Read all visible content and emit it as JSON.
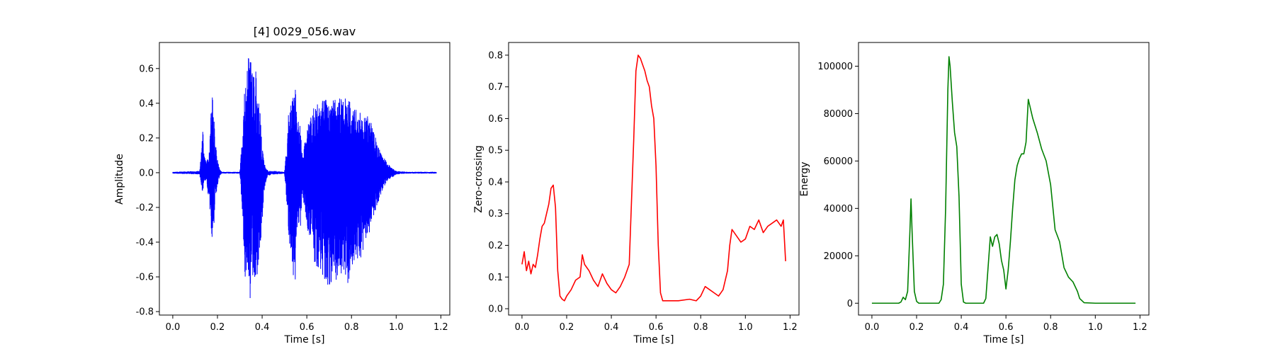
{
  "chart_data": [
    {
      "type": "line",
      "title": "[4] 0029_056.wav",
      "xlabel": "Time [s]",
      "ylabel": "Amplitude",
      "xlim": [
        -0.06,
        1.24
      ],
      "ylim": [
        -0.82,
        0.75
      ],
      "xticks": [
        "0.0",
        "0.2",
        "0.4",
        "0.6",
        "0.8",
        "1.0",
        "1.2"
      ],
      "yticks": [
        "-0.8",
        "-0.6",
        "-0.4",
        "-0.2",
        "0.0",
        "0.2",
        "0.4",
        "0.6"
      ],
      "color": "#0000ff",
      "grid": false,
      "series": [
        {
          "envelope": {
            "t": [
              0.0,
              0.12,
              0.13,
              0.135,
              0.14,
              0.15,
              0.165,
              0.17,
              0.18,
              0.185,
              0.19,
              0.2,
              0.21,
              0.22,
              0.3,
              0.315,
              0.32,
              0.33,
              0.34,
              0.355,
              0.37,
              0.38,
              0.39,
              0.4,
              0.41,
              0.42,
              0.43,
              0.44,
              0.46,
              0.5,
              0.515,
              0.52,
              0.53,
              0.54,
              0.55,
              0.56,
              0.57,
              0.58,
              0.6,
              0.61,
              0.63,
              0.65,
              0.68,
              0.7,
              0.72,
              0.74,
              0.76,
              0.78,
              0.8,
              0.82,
              0.84,
              0.86,
              0.88,
              0.9,
              0.92,
              0.94,
              0.96,
              0.98,
              1.0,
              1.05,
              1.18
            ],
            "upper": [
              0.005,
              0.01,
              0.18,
              0.31,
              0.1,
              0.06,
              0.15,
              0.38,
              0.46,
              0.3,
              0.18,
              0.08,
              0.02,
              0.005,
              0.005,
              0.3,
              0.45,
              0.55,
              0.7,
              0.62,
              0.64,
              0.42,
              0.4,
              0.15,
              0.06,
              0.02,
              0.01,
              0.01,
              0.01,
              0.005,
              0.25,
              0.4,
              0.43,
              0.47,
              0.5,
              0.3,
              0.28,
              0.1,
              0.24,
              0.3,
              0.37,
              0.4,
              0.43,
              0.44,
              0.42,
              0.45,
              0.42,
              0.44,
              0.41,
              0.38,
              0.35,
              0.34,
              0.32,
              0.24,
              0.15,
              0.1,
              0.06,
              0.03,
              0.01,
              0.005,
              0.005
            ],
            "lower": [
              -0.005,
              -0.01,
              -0.1,
              -0.16,
              -0.06,
              -0.04,
              -0.2,
              -0.38,
              -0.4,
              -0.3,
              -0.15,
              -0.08,
              -0.02,
              -0.005,
              -0.005,
              -0.3,
              -0.55,
              -0.7,
              -0.77,
              -0.7,
              -0.66,
              -0.6,
              -0.5,
              -0.3,
              -0.1,
              -0.03,
              -0.02,
              -0.01,
              -0.01,
              -0.005,
              -0.25,
              -0.4,
              -0.45,
              -0.6,
              -0.64,
              -0.25,
              -0.4,
              -0.12,
              -0.3,
              -0.4,
              -0.5,
              -0.57,
              -0.62,
              -0.66,
              -0.63,
              -0.62,
              -0.6,
              -0.65,
              -0.58,
              -0.5,
              -0.5,
              -0.43,
              -0.35,
              -0.25,
              -0.17,
              -0.1,
              -0.05,
              -0.03,
              -0.01,
              -0.005,
              -0.005
            ]
          }
        }
      ]
    },
    {
      "type": "line",
      "title": "",
      "xlabel": "Time [s]",
      "ylabel": "Zero-crossing",
      "xlim": [
        -0.06,
        1.24
      ],
      "ylim": [
        -0.02,
        0.84
      ],
      "xticks": [
        "0.0",
        "0.2",
        "0.4",
        "0.6",
        "0.8",
        "1.0",
        "1.2"
      ],
      "yticks": [
        "0.0",
        "0.1",
        "0.2",
        "0.3",
        "0.4",
        "0.5",
        "0.6",
        "0.7",
        "0.8"
      ],
      "color": "#ff0000",
      "grid": false,
      "series": [
        {
          "x": [
            0.0,
            0.01,
            0.02,
            0.03,
            0.04,
            0.05,
            0.06,
            0.07,
            0.08,
            0.09,
            0.1,
            0.11,
            0.12,
            0.13,
            0.14,
            0.15,
            0.16,
            0.17,
            0.18,
            0.19,
            0.2,
            0.21,
            0.22,
            0.24,
            0.26,
            0.27,
            0.28,
            0.3,
            0.32,
            0.34,
            0.36,
            0.38,
            0.4,
            0.42,
            0.44,
            0.46,
            0.48,
            0.5,
            0.51,
            0.52,
            0.53,
            0.54,
            0.55,
            0.56,
            0.57,
            0.58,
            0.59,
            0.6,
            0.61,
            0.62,
            0.63,
            0.66,
            0.7,
            0.75,
            0.78,
            0.8,
            0.82,
            0.84,
            0.86,
            0.88,
            0.9,
            0.92,
            0.93,
            0.94,
            0.95,
            0.96,
            0.98,
            1.0,
            1.02,
            1.04,
            1.06,
            1.08,
            1.1,
            1.12,
            1.14,
            1.16,
            1.17,
            1.18
          ],
          "y": [
            0.14,
            0.18,
            0.12,
            0.15,
            0.11,
            0.14,
            0.13,
            0.17,
            0.22,
            0.26,
            0.27,
            0.3,
            0.33,
            0.38,
            0.39,
            0.32,
            0.12,
            0.04,
            0.03,
            0.025,
            0.04,
            0.05,
            0.06,
            0.09,
            0.1,
            0.17,
            0.14,
            0.12,
            0.09,
            0.07,
            0.11,
            0.08,
            0.06,
            0.05,
            0.07,
            0.1,
            0.14,
            0.53,
            0.75,
            0.8,
            0.79,
            0.77,
            0.75,
            0.72,
            0.7,
            0.64,
            0.6,
            0.45,
            0.2,
            0.05,
            0.025,
            0.025,
            0.025,
            0.03,
            0.025,
            0.04,
            0.07,
            0.06,
            0.05,
            0.04,
            0.06,
            0.12,
            0.2,
            0.25,
            0.24,
            0.23,
            0.21,
            0.22,
            0.26,
            0.25,
            0.28,
            0.24,
            0.26,
            0.27,
            0.28,
            0.26,
            0.28,
            0.15
          ]
        }
      ]
    },
    {
      "type": "line",
      "title": "",
      "xlabel": "Time [s]",
      "ylabel": "Energy",
      "xlim": [
        -0.06,
        1.24
      ],
      "ylim": [
        -5000,
        110000
      ],
      "xticks": [
        "0.0",
        "0.2",
        "0.4",
        "0.6",
        "0.8",
        "1.0",
        "1.2"
      ],
      "yticks": [
        "0",
        "20000",
        "40000",
        "60000",
        "80000",
        "100000"
      ],
      "color": "#008000",
      "grid": false,
      "series": [
        {
          "x": [
            0.0,
            0.12,
            0.13,
            0.14,
            0.15,
            0.16,
            0.17,
            0.175,
            0.18,
            0.19,
            0.2,
            0.21,
            0.3,
            0.31,
            0.32,
            0.33,
            0.34,
            0.345,
            0.35,
            0.36,
            0.37,
            0.38,
            0.39,
            0.4,
            0.41,
            0.42,
            0.5,
            0.51,
            0.52,
            0.53,
            0.54,
            0.55,
            0.56,
            0.57,
            0.58,
            0.59,
            0.6,
            0.61,
            0.62,
            0.63,
            0.64,
            0.65,
            0.66,
            0.67,
            0.68,
            0.69,
            0.7,
            0.71,
            0.72,
            0.74,
            0.76,
            0.78,
            0.8,
            0.82,
            0.84,
            0.86,
            0.88,
            0.9,
            0.92,
            0.93,
            0.95,
            1.0,
            1.18
          ],
          "y": [
            0,
            0,
            500,
            2500,
            1500,
            5000,
            30000,
            44000,
            30000,
            5000,
            800,
            0,
            0,
            1500,
            8000,
            40000,
            90000,
            104000,
            100000,
            85000,
            72000,
            66000,
            45000,
            8000,
            500,
            0,
            0,
            2000,
            15000,
            28000,
            24000,
            28000,
            29000,
            25000,
            18000,
            14000,
            6000,
            14000,
            26000,
            40000,
            52000,
            58000,
            61000,
            63000,
            63000,
            68000,
            86000,
            82000,
            78000,
            72000,
            65000,
            60000,
            50000,
            31000,
            26000,
            15000,
            11000,
            9000,
            5000,
            2000,
            200,
            0,
            0
          ]
        }
      ]
    }
  ]
}
